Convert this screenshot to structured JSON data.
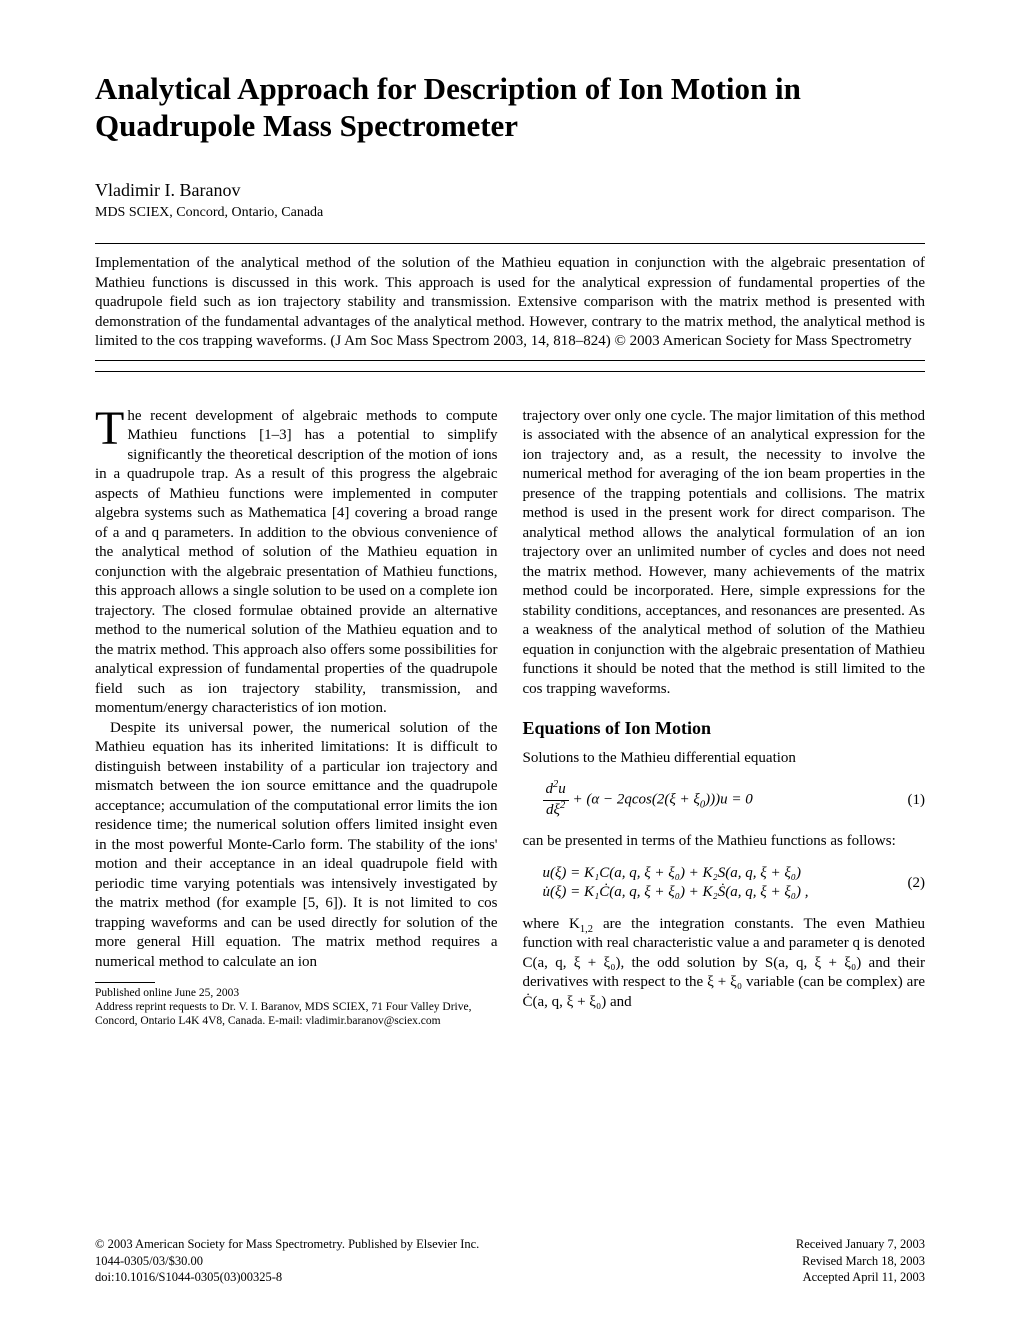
{
  "title": "Analytical Approach for Description of Ion Motion in Quadrupole Mass Spectrometer",
  "author": "Vladimir I. Baranov",
  "affiliation": "MDS SCIEX, Concord, Ontario, Canada",
  "abstract": "Implementation of the analytical method of the solution of the Mathieu equation in conjunction with the algebraic presentation of Mathieu functions is discussed in this work. This approach is used for the analytical expression of fundamental properties of the quadrupole field such as ion trajectory stability and transmission. Extensive comparison with the matrix method is presented with demonstration of the fundamental advantages of the analytical method. However, contrary to the matrix method, the analytical method is limited to the cos trapping waveforms.   (J Am Soc Mass Spectrom 2003, 14, 818–824) © 2003 American Society for Mass Spectrometry",
  "col1": {
    "dropcap": "T",
    "p1_rest": "he recent development of algebraic methods to compute Mathieu functions [1–3] has a potential to simplify significantly the theoretical description of the motion of ions in a quadrupole trap. As a result of this progress the algebraic aspects of Mathieu functions were implemented in computer algebra systems such as Mathematica [4] covering a broad range of a and q parameters. In addition to the obvious convenience of the analytical method of solution of the Mathieu equation in conjunction with the algebraic presentation of Mathieu functions, this approach allows a single solution to be used on a complete ion trajectory. The closed formulae obtained provide an alternative method to the numerical solution of the Mathieu equation and to the matrix method. This approach also offers some possibilities for analytical expression of fundamental properties of the quadrupole field such as ion trajectory stability, transmission, and momentum/energy characteristics of ion motion.",
    "p2": "Despite its universal power, the numerical solution of the Mathieu equation has its inherited limitations: It is difficult to distinguish between instability of a particular ion trajectory and mismatch between the ion source emittance and the quadrupole acceptance; accumulation of the computational error limits the ion residence time; the numerical solution offers limited insight even in the most powerful Monte-Carlo form. The stability of the ions' motion and their acceptance in an ideal quadrupole field with periodic time varying potentials was intensively investigated by the matrix method (for example [5, 6]). It is not limited to cos trapping waveforms and can be used directly for solution of the more general Hill equation. The matrix method requires a numerical method to calculate an ion"
  },
  "footnotes": {
    "pub": "Published online June 25, 2003",
    "addr": "Address reprint requests to Dr. V. I. Baranov, MDS SCIEX, 71 Four Valley Drive, Concord, Ontario L4K 4V8, Canada. E-mail: vladimir.baranov@sciex.com"
  },
  "col2": {
    "p1": "trajectory over only one cycle. The major limitation of this method is associated with the absence of an analytical expression for the ion trajectory and, as a result, the necessity to involve the numerical method for averaging of the ion beam properties in the presence of the trapping potentials and collisions. The matrix method is used in the present work for direct comparison. The analytical method allows the analytical formulation of an ion trajectory over an unlimited number of cycles and does not need the matrix method. However, many achievements of the matrix method could be incorporated. Here, simple expressions for the stability conditions, acceptances, and resonances are presented. As a weakness of the analytical method of solution of the Mathieu equation in conjunction with the algebraic presentation of Mathieu functions it should be noted that the method is still limited to the cos trapping waveforms.",
    "section_head": "Equations of Ion Motion",
    "p2": "Solutions to the Mathieu differential equation",
    "eq1_num": "(1)",
    "p3": "can be presented in terms of the Mathieu functions as follows:",
    "eq2_num": "(2)",
    "p4_a": "where K",
    "p4_b": " are the integration constants. The even Mathieu function with real characteristic value a and parameter q is denoted C(a, q, ξ + ξ₀), the odd solution by S(a, q, ξ + ξ₀) and their derivatives with respect to the ξ + ξ₀ variable (can be complex) are Ċ(a, q, ξ + ξ₀) and",
    "sub12": "1,2"
  },
  "equations": {
    "eq1": "d²u/dξ² + (α − 2q cos(2(ξ + ξ₀)))u = 0",
    "eq2_line1": "u(ξ) = K₁C(a, q, ξ + ξ₀) + K₂S(a, q, ξ + ξ₀)",
    "eq2_line2": "u̇(ξ) = K₁Ċ(a, q, ξ + ξ₀) + K₂Ṡ(a, q, ξ + ξ₀)"
  },
  "bottom": {
    "left1": "© 2003 American Society for Mass Spectrometry. Published by Elsevier Inc.",
    "left2": "1044-0305/03/$30.00",
    "left3": "doi:10.1016/S1044-0305(03)00325-8",
    "right1": "Received January 7, 2003",
    "right2": "Revised March 18, 2003",
    "right3": "Accepted April 11, 2003"
  }
}
